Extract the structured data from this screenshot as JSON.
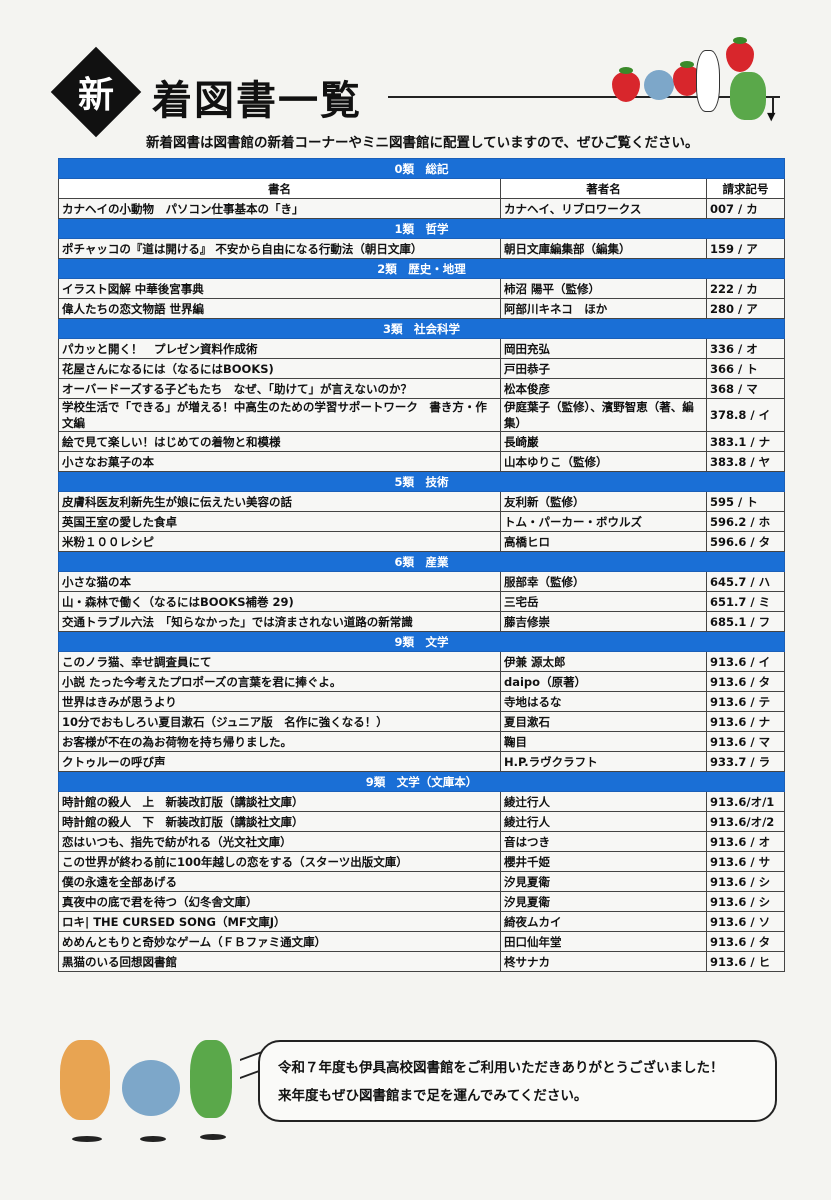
{
  "header": {
    "badge": "新",
    "title": "着図書一覧",
    "subtitle": "新着図書は図書館の新着コーナーやミニ図書館に配置していますので、ぜひご覧ください。"
  },
  "columns": [
    "書名",
    "著者名",
    "請求記号"
  ],
  "sections": [
    {
      "label": "0類　総記",
      "rows": [
        {
          "title": "カナヘイの小動物　パソコン仕事基本の「き」",
          "author": "カナヘイ、リブロワークス",
          "call": "007 / カ"
        }
      ]
    },
    {
      "label": "1類　哲学",
      "rows": [
        {
          "title": "ポチャッコの『道は開ける』 不安から自由になる行動法（朝日文庫）",
          "author": "朝日文庫編集部（編集）",
          "call": "159 / ア"
        }
      ]
    },
    {
      "label": "2類　歴史・地理",
      "rows": [
        {
          "title": "イラスト図解 中華後宮事典",
          "author": "柿沼 陽平（監修）",
          "call": "222 / カ"
        },
        {
          "title": "偉人たちの恋文物語 世界編",
          "author": "阿部川キネコ　ほか",
          "call": "280 / ア"
        }
      ]
    },
    {
      "label": "3類　社会科学",
      "rows": [
        {
          "title": "パカッと開く！　プレゼン資料作成術",
          "author": "岡田充弘",
          "call": "336 / オ"
        },
        {
          "title": "花屋さんになるには（なるにはBOOKS)",
          "author": "戸田恭子",
          "call": "366 / ト"
        },
        {
          "title": "オーバードーズする子どもたち　なぜ、「助けて」が言えないのか？",
          "author": "松本俊彦",
          "call": "368 / マ"
        },
        {
          "title": "学校生活で「できる」が増える！中高生のための学習サポートワーク　書き方・作文編",
          "author": "伊庭葉子（監修）、濱野智恵（著、編集）",
          "call": "378.8 / イ"
        },
        {
          "title": "絵で見て楽しい！はじめての着物と和模様",
          "author": "長崎巌",
          "call": "383.1 / ナ"
        },
        {
          "title": "小さなお菓子の本",
          "author": "山本ゆりこ（監修）",
          "call": "383.8 / ヤ"
        }
      ]
    },
    {
      "label": "5類　技術",
      "rows": [
        {
          "title": "皮膚科医友利新先生が娘に伝えたい美容の話",
          "author": "友利新（監修）",
          "call": "595 / ト"
        },
        {
          "title": "英国王室の愛した食卓",
          "author": "トム・パーカー・ボウルズ",
          "call": "596.2 / ホ"
        },
        {
          "title": "米粉１００レシピ",
          "author": "高橋ヒロ",
          "call": "596.6 / タ"
        }
      ]
    },
    {
      "label": "6類　産業",
      "rows": [
        {
          "title": "小さな猫の本",
          "author": "服部幸（監修）",
          "call": "645.7 / ハ"
        },
        {
          "title": "山・森林で働く（なるにはBOOKS補巻 29)",
          "author": "三宅岳",
          "call": "651.7 / ミ"
        },
        {
          "title": "交通トラブル六法　「知らなかった」では済まされない道路の新常識",
          "author": "藤吉修崇",
          "call": "685.1 / フ"
        }
      ]
    },
    {
      "label": "9類　文学",
      "rows": [
        {
          "title": "このノラ猫、幸せ調査員にて",
          "author": "伊兼 源太郎",
          "call": "913.6 / イ"
        },
        {
          "title": "小説 たった今考えたプロポーズの言葉を君に捧ぐよ。",
          "author": "daipo（原著）",
          "call": "913.6 / タ"
        },
        {
          "title": "世界はきみが思うより",
          "author": "寺地はるな",
          "call": "913.6 / テ"
        },
        {
          "title": "10分でおもしろい夏目漱石（ジュニア版　名作に強くなる！）",
          "author": "夏目漱石",
          "call": "913.6 / ナ"
        },
        {
          "title": "お客様が不在の為お荷物を持ち帰りました。",
          "author": "鞠目",
          "call": "913.6 / マ"
        },
        {
          "title": "クトゥルーの呼び声",
          "author": "H.P.ラヴクラフト",
          "call": "933.7 / ラ"
        }
      ]
    },
    {
      "label": "9類　文学（文庫本）",
      "rows": [
        {
          "title": "時計館の殺人　上　新装改訂版（講談社文庫）",
          "author": "綾辻行人",
          "call": "913.6/オ/1"
        },
        {
          "title": "時計館の殺人　下　新装改訂版（講談社文庫）",
          "author": "綾辻行人",
          "call": "913.6/オ/2"
        },
        {
          "title": "恋はいつも、指先で紡がれる（光文社文庫）",
          "author": "音はつき",
          "call": "913.6 / オ"
        },
        {
          "title": "この世界が終わる前に100年越しの恋をする（スターツ出版文庫）",
          "author": "櫻井千姫",
          "call": "913.6 / サ"
        },
        {
          "title": "僕の永遠を全部あげる",
          "author": "汐見夏衛",
          "call": "913.6 / シ"
        },
        {
          "title": "真夜中の底で君を待つ（幻冬舎文庫）",
          "author": "汐見夏衛",
          "call": "913.6 / シ"
        },
        {
          "title": "ロキ| THE CURSED SONG（MF文庫J）",
          "author": "綺夜ムカイ",
          "call": "913.6 / ソ"
        },
        {
          "title": "めめんともりと奇妙なゲーム（ＦＢファミ通文庫）",
          "author": "田口仙年堂",
          "call": "913.6 / タ"
        },
        {
          "title": "黒猫のいる回想図書館",
          "author": "柊サナカ",
          "call": "913.6 / ヒ"
        }
      ]
    }
  ],
  "message": {
    "line1": "令和７年度も伊具高校図書館をご利用いただきありがとうございました！",
    "line2": "来年度もぜひ図書館まで足を運んでみてください。"
  },
  "colors": {
    "section_bar": "#1a6fd6",
    "strawberry": "#d8262c"
  }
}
